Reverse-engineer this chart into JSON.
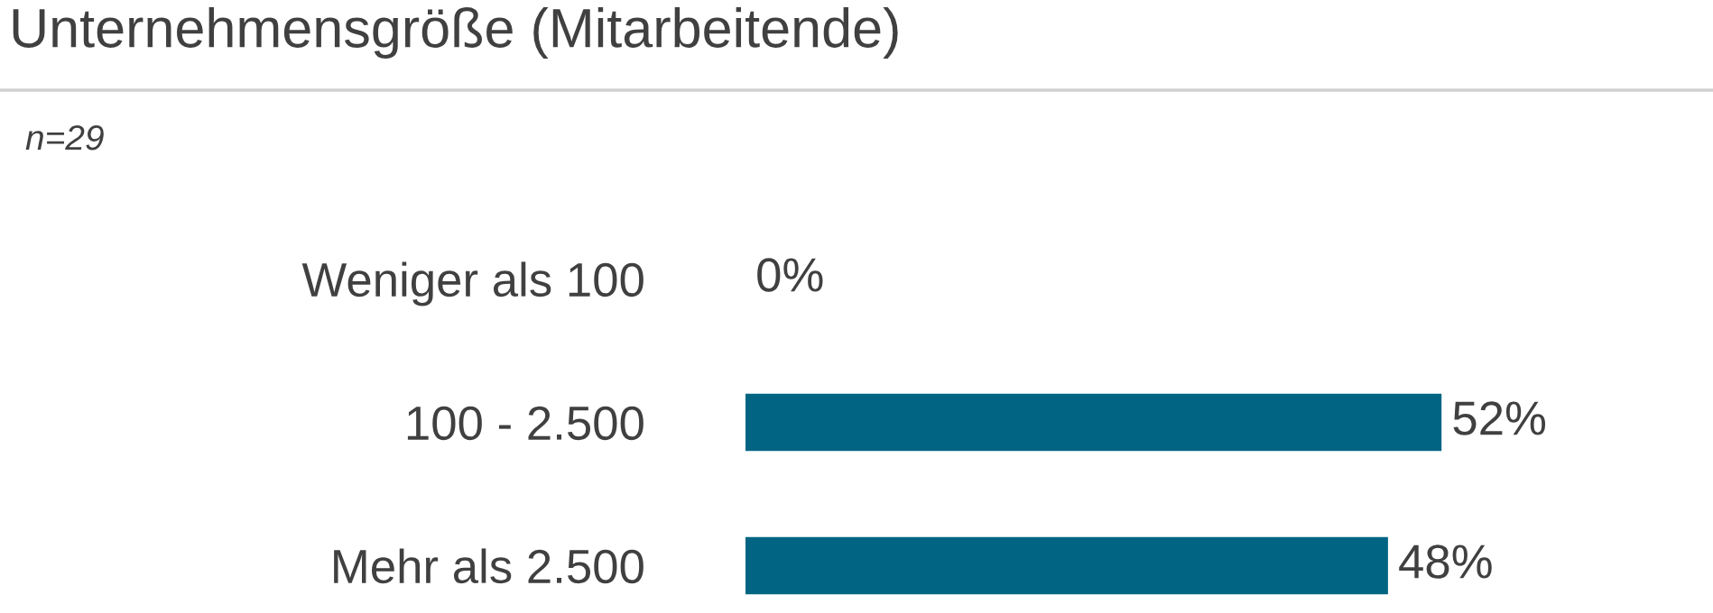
{
  "chart_data": {
    "type": "bar",
    "orientation": "horizontal",
    "title": "Unternehmensgröße (Mitarbeitende)",
    "subtitle": "n=29",
    "categories": [
      "Weniger als 100",
      "100 - 2.500",
      "Mehr als 2.500"
    ],
    "values": [
      0,
      52,
      48
    ],
    "color": "#006482",
    "value_labels": [
      "0%",
      "52%",
      "48%"
    ]
  }
}
